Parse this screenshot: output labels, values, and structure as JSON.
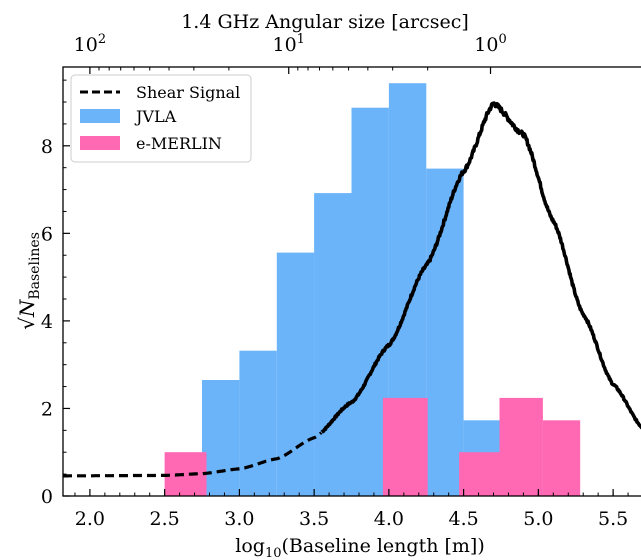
{
  "chart_data": {
    "type": "bar",
    "title": "",
    "xlabel": "log$_{10}$(Baseline length [m])",
    "xlabel_main": "log",
    "xlabel_sub": "10",
    "xlabel_rest": "(Baseline length [m])",
    "ylabel_prefix": "√N",
    "ylabel_sub": "Baselines",
    "top_xlabel": "1.4 GHz Angular size [arcsec]",
    "xlim": [
      1.82,
      5.7
    ],
    "ylim": [
      0,
      9.8
    ],
    "x_ticks": [
      2.0,
      2.5,
      3.0,
      3.5,
      4.0,
      4.5,
      5.0,
      5.5
    ],
    "x_tick_labels": [
      "2.0",
      "2.5",
      "3.0",
      "3.5",
      "4.0",
      "4.5",
      "5.0",
      "5.5"
    ],
    "y_ticks": [
      0,
      2,
      4,
      6,
      8
    ],
    "y_tick_labels": [
      "0",
      "2",
      "4",
      "6",
      "8"
    ],
    "top_ticks": [
      {
        "x": 2.0,
        "base": "10",
        "exp": "2"
      },
      {
        "x": 3.33,
        "base": "10",
        "exp": "1"
      },
      {
        "x": 4.68,
        "base": "10",
        "exp": "0"
      }
    ],
    "legend_position": "top-left",
    "legend": [
      {
        "label": "Shear Signal",
        "kind": "line",
        "color": "#000000"
      },
      {
        "label": "JVLA",
        "kind": "patch",
        "color": "#6cb4fa"
      },
      {
        "label": "e-MERLIN",
        "kind": "patch",
        "color": "#ff69b4"
      }
    ],
    "series": [
      {
        "name": "JVLA",
        "color": "#6cb4fa",
        "bins": [
          {
            "x0": 2.75,
            "x1": 3.0,
            "value": 2.65
          },
          {
            "x0": 3.0,
            "x1": 3.25,
            "value": 3.32
          },
          {
            "x0": 3.25,
            "x1": 3.5,
            "value": 5.56
          },
          {
            "x0": 3.5,
            "x1": 3.75,
            "value": 6.92
          },
          {
            "x0": 3.75,
            "x1": 4.0,
            "value": 8.87
          },
          {
            "x0": 4.0,
            "x1": 4.25,
            "value": 9.43
          },
          {
            "x0": 4.25,
            "x1": 4.5,
            "value": 7.48
          },
          {
            "x0": 4.5,
            "x1": 4.75,
            "value": 1.73
          }
        ]
      },
      {
        "name": "e-MERLIN",
        "color": "#ff69b4",
        "bins": [
          {
            "x0": 2.5,
            "x1": 2.78,
            "value": 1.0
          },
          {
            "x0": 3.96,
            "x1": 4.26,
            "value": 2.24
          },
          {
            "x0": 4.47,
            "x1": 4.74,
            "value": 1.0
          },
          {
            "x0": 4.74,
            "x1": 5.03,
            "value": 2.24
          },
          {
            "x0": 5.03,
            "x1": 5.28,
            "value": 1.73
          }
        ]
      },
      {
        "name": "Shear Signal",
        "color": "#000000",
        "style": "dashed-then-noisy",
        "points": [
          {
            "x": 1.82,
            "y": 0.46
          },
          {
            "x": 2.5,
            "y": 0.47
          },
          {
            "x": 2.75,
            "y": 0.51
          },
          {
            "x": 3.0,
            "y": 0.62
          },
          {
            "x": 3.25,
            "y": 0.85
          },
          {
            "x": 3.5,
            "y": 1.33
          },
          {
            "x": 3.75,
            "y": 2.14
          },
          {
            "x": 4.0,
            "y": 3.45
          },
          {
            "x": 4.25,
            "y": 5.26
          },
          {
            "x": 4.5,
            "y": 7.42
          },
          {
            "x": 4.7,
            "y": 8.97
          },
          {
            "x": 4.9,
            "y": 8.26
          },
          {
            "x": 5.1,
            "y": 6.28
          },
          {
            "x": 5.3,
            "y": 4.15
          },
          {
            "x": 5.5,
            "y": 2.55
          },
          {
            "x": 5.7,
            "y": 1.55
          }
        ]
      }
    ]
  }
}
